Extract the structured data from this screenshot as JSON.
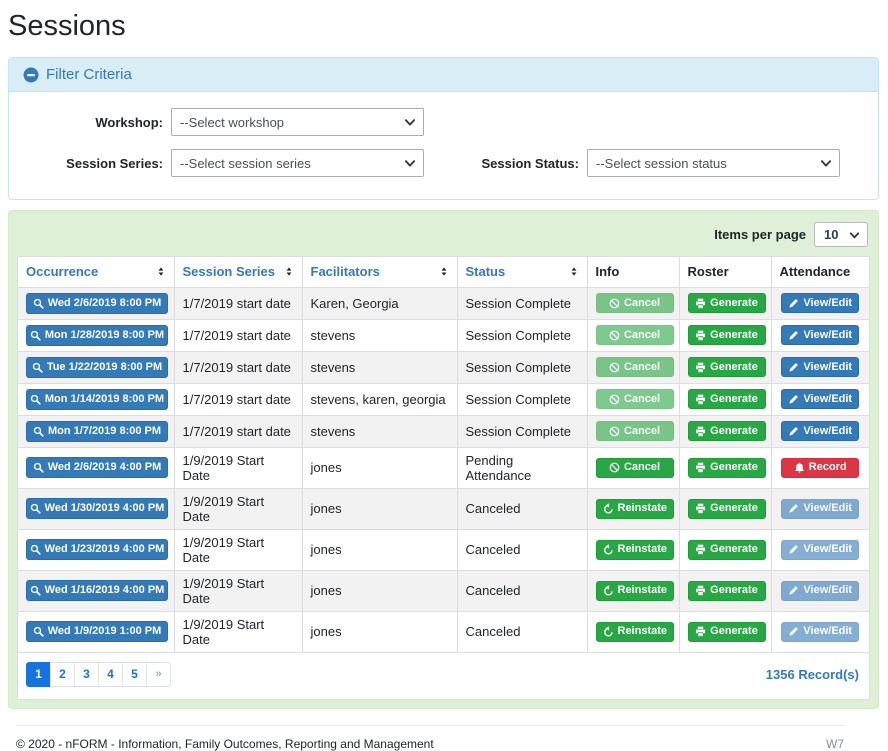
{
  "page": {
    "title": "Sessions"
  },
  "filter": {
    "header_label": "Filter Criteria",
    "workshop": {
      "label": "Workshop:",
      "value": "--Select workshop"
    },
    "session_series": {
      "label": "Session Series:",
      "value": "--Select session series"
    },
    "session_status": {
      "label": "Session Status:",
      "value": "--Select session status"
    }
  },
  "table": {
    "items_per_page_label": "Items per page",
    "items_per_page_value": "10",
    "columns": [
      {
        "label": "Occurrence",
        "sortable": true
      },
      {
        "label": "Session Series",
        "sortable": true
      },
      {
        "label": "Facilitators",
        "sortable": true
      },
      {
        "label": "Status",
        "sortable": true
      },
      {
        "label": "Info",
        "sortable": false
      },
      {
        "label": "Roster",
        "sortable": false
      },
      {
        "label": "Attendance",
        "sortable": false
      }
    ],
    "actions": {
      "cancel": {
        "label": "Cancel",
        "icon": "ban-icon",
        "style": "success"
      },
      "reinstate": {
        "label": "Reinstate",
        "icon": "undo-icon",
        "style": "success"
      },
      "generate": {
        "label": "Generate",
        "icon": "printer-icon",
        "style": "success"
      },
      "viewedit": {
        "label": "View/Edit",
        "icon": "pencil-icon",
        "style": "primary"
      },
      "record": {
        "label": "Record",
        "icon": "bell-icon",
        "style": "danger"
      }
    },
    "rows": [
      {
        "occurrence": "Wed 2/6/2019 8:00 PM",
        "session_series": "1/7/2019 start date",
        "facilitators": "Karen, Georgia",
        "status": "Session Complete",
        "info": {
          "type": "cancel",
          "disabled": true
        },
        "roster": {
          "type": "generate",
          "disabled": false
        },
        "attendance": {
          "type": "viewedit",
          "disabled": false
        }
      },
      {
        "occurrence": "Mon 1/28/2019 8:00 PM",
        "session_series": "1/7/2019 start date",
        "facilitators": "stevens",
        "status": "Session Complete",
        "info": {
          "type": "cancel",
          "disabled": true
        },
        "roster": {
          "type": "generate",
          "disabled": false
        },
        "attendance": {
          "type": "viewedit",
          "disabled": false
        }
      },
      {
        "occurrence": "Tue 1/22/2019 8:00 PM",
        "session_series": "1/7/2019 start date",
        "facilitators": "stevens",
        "status": "Session Complete",
        "info": {
          "type": "cancel",
          "disabled": true
        },
        "roster": {
          "type": "generate",
          "disabled": false
        },
        "attendance": {
          "type": "viewedit",
          "disabled": false
        }
      },
      {
        "occurrence": "Mon 1/14/2019 8:00 PM",
        "session_series": "1/7/2019 start date",
        "facilitators": "stevens, karen, georgia",
        "status": "Session Complete",
        "info": {
          "type": "cancel",
          "disabled": true
        },
        "roster": {
          "type": "generate",
          "disabled": false
        },
        "attendance": {
          "type": "viewedit",
          "disabled": false
        }
      },
      {
        "occurrence": "Mon 1/7/2019 8:00 PM",
        "session_series": "1/7/2019 start date",
        "facilitators": "stevens",
        "status": "Session Complete",
        "info": {
          "type": "cancel",
          "disabled": true
        },
        "roster": {
          "type": "generate",
          "disabled": false
        },
        "attendance": {
          "type": "viewedit",
          "disabled": false
        }
      },
      {
        "occurrence": "Wed 2/6/2019 4:00 PM",
        "session_series": "1/9/2019 Start Date",
        "facilitators": "jones",
        "status": "Pending Attendance",
        "info": {
          "type": "cancel",
          "disabled": false
        },
        "roster": {
          "type": "generate",
          "disabled": false
        },
        "attendance": {
          "type": "record",
          "disabled": false
        }
      },
      {
        "occurrence": "Wed 1/30/2019 4:00 PM",
        "session_series": "1/9/2019 Start Date",
        "facilitators": "jones",
        "status": "Canceled",
        "info": {
          "type": "reinstate",
          "disabled": false
        },
        "roster": {
          "type": "generate",
          "disabled": false
        },
        "attendance": {
          "type": "viewedit",
          "disabled": true
        }
      },
      {
        "occurrence": "Wed 1/23/2019 4:00 PM",
        "session_series": "1/9/2019 Start Date",
        "facilitators": "jones",
        "status": "Canceled",
        "info": {
          "type": "reinstate",
          "disabled": false
        },
        "roster": {
          "type": "generate",
          "disabled": false
        },
        "attendance": {
          "type": "viewedit",
          "disabled": true
        }
      },
      {
        "occurrence": "Wed 1/16/2019 4:00 PM",
        "session_series": "1/9/2019 Start Date",
        "facilitators": "jones",
        "status": "Canceled",
        "info": {
          "type": "reinstate",
          "disabled": false
        },
        "roster": {
          "type": "generate",
          "disabled": false
        },
        "attendance": {
          "type": "viewedit",
          "disabled": true
        }
      },
      {
        "occurrence": "Wed 1/9/2019 1:00 PM",
        "session_series": "1/9/2019 Start Date",
        "facilitators": "jones",
        "status": "Canceled",
        "info": {
          "type": "reinstate",
          "disabled": false
        },
        "roster": {
          "type": "generate",
          "disabled": false
        },
        "attendance": {
          "type": "viewedit",
          "disabled": true
        }
      }
    ],
    "pagination": {
      "pages": [
        "1",
        "2",
        "3",
        "4",
        "5"
      ],
      "active_page": "1",
      "next_label": "»"
    },
    "record_count": "1356 Record(s)"
  },
  "footer": {
    "copyright": "© 2020 - nFORM - Information, Family Outcomes, Reporting and Management",
    "environment": "W7"
  },
  "colors": {
    "primary_blue": "#337ab7",
    "success_green": "#28a745",
    "danger_red": "#dc3545",
    "panel_green_bg": "#dff0d8",
    "panel_green_border": "#d6e9c6",
    "filter_blue_bg": "#d9edf7",
    "filter_blue_border": "#bce8f1",
    "pagination_blue": "#1673dd",
    "striped_row": "#f2f2f2"
  }
}
